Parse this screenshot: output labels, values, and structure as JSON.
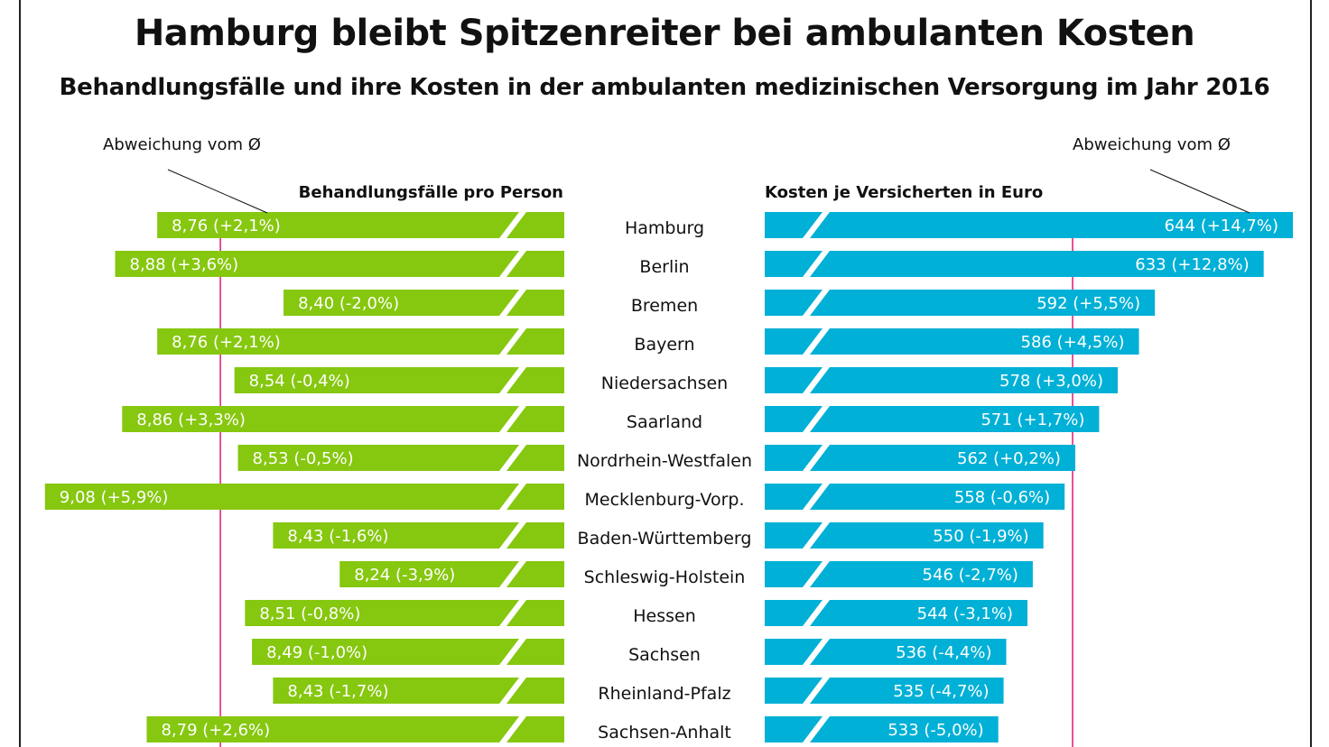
{
  "chart_data": {
    "type": "bar",
    "title": "Hamburg bleibt Spitzenreiter bei ambulanten Kosten",
    "subtitle": "Behandlungsfälle und ihre Kosten in der ambulanten medizinischen Versorgung im Jahr 2016",
    "categories": [
      "Hamburg",
      "Berlin",
      "Bremen",
      "Bayern",
      "Niedersachsen",
      "Saarland",
      "Nordrhein-Westfalen",
      "Mecklenburg-Vorp.",
      "Baden-Württemberg",
      "Schleswig-Holstein",
      "Hessen",
      "Sachsen",
      "Rheinland-Pfalz",
      "Sachsen-Anhalt"
    ],
    "series": [
      {
        "name": "Behandlungsfälle pro Person",
        "side": "left",
        "color": "#86c70f",
        "values": [
          8.76,
          8.88,
          8.4,
          8.76,
          8.54,
          8.86,
          8.53,
          9.08,
          8.43,
          8.24,
          8.51,
          8.49,
          8.43,
          8.79
        ],
        "labels": [
          "8,76 (+2,1%)",
          "8,88 (+3,6%)",
          "8,40 (-2,0%)",
          "8,76 (+2,1%)",
          "8,54 (-0,4%)",
          "8,86 (+3,3%)",
          "8,53 (-0,5%)",
          "9,08 (+5,9%)",
          "8,43 (-1,6%)",
          "8,24 (-3,9%)",
          "8,51 (-0,8%)",
          "8,49 (-1,0%)",
          "8,43 (-1,7%)",
          "8,79 (+2,6%)"
        ],
        "average": 8.58,
        "axis_break": true,
        "axis_range": [
          7.6,
          9.1
        ]
      },
      {
        "name": "Kosten je Versicherten in Euro",
        "side": "right",
        "color": "#00b0d6",
        "values": [
          644,
          633,
          592,
          586,
          578,
          571,
          562,
          558,
          550,
          546,
          544,
          536,
          535,
          533
        ],
        "labels": [
          "644 (+14,7%)",
          "633 (+12,8%)",
          "592 (+5,5%)",
          "586 (+4,5%)",
          "578 (+3,0%)",
          "571 (+1,7%)",
          "562 (+0,2%)",
          "558 (-0,6%)",
          "550 (-1,9%)",
          "546 (-2,7%)",
          "544 (-3,1%)",
          "536 (-4,4%)",
          "535 (-4,7%)",
          "533 (-5,0%)"
        ],
        "average": 561,
        "axis_break": true,
        "axis_range": [
          445,
          650
        ]
      }
    ],
    "annotations": [
      "Abweichung vom Ø",
      "Abweichung vom Ø"
    ],
    "reference_line_color": "#e0197d",
    "grid": false,
    "legend": "none"
  }
}
